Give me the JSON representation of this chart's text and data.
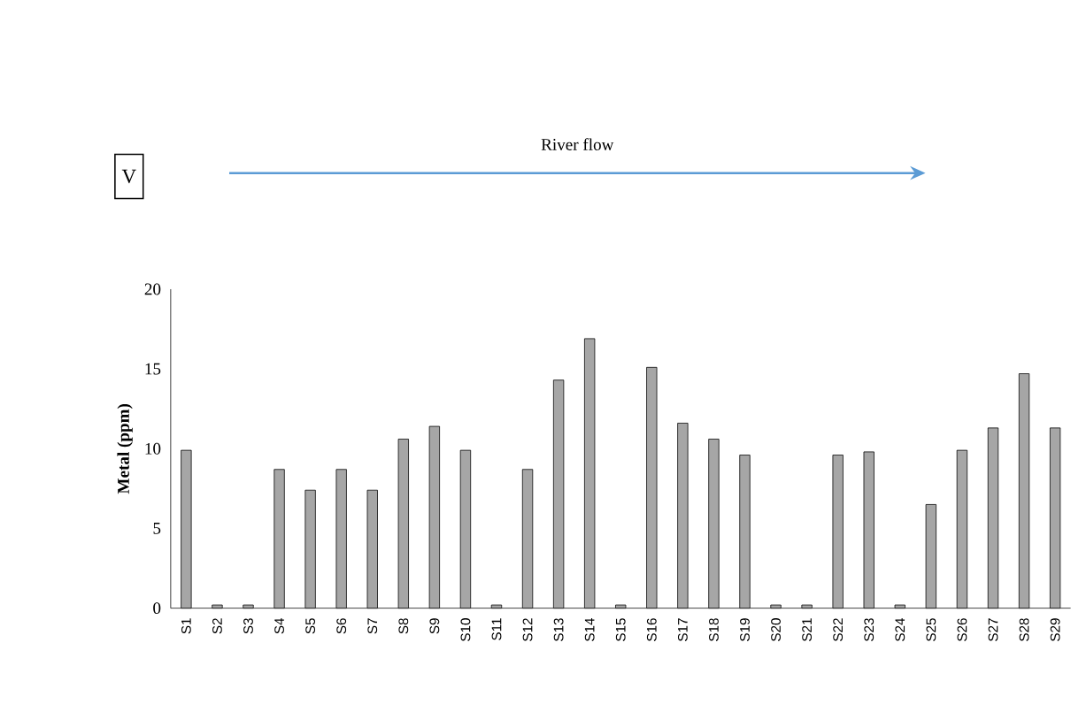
{
  "chart_data": {
    "type": "bar",
    "ylabel": "Metal (ppm)",
    "annotations": [
      "V",
      "River flow"
    ],
    "categories": [
      "S1",
      "S2",
      "S3",
      "S4",
      "S5",
      "S6",
      "S7",
      "S8",
      "S9",
      "S10",
      "S11",
      "S12",
      "S13",
      "S14",
      "S15",
      "S16",
      "S17",
      "S18",
      "S19",
      "S20",
      "S21",
      "S22",
      "S23",
      "S24",
      "S25",
      "S26",
      "S27",
      "S28",
      "S29"
    ],
    "values": [
      9.9,
      0.2,
      0.2,
      8.7,
      7.4,
      8.7,
      7.4,
      10.6,
      11.4,
      9.9,
      0.2,
      8.7,
      14.3,
      16.9,
      0.2,
      15.1,
      11.6,
      10.6,
      9.6,
      0.2,
      0.2,
      9.6,
      9.8,
      0.2,
      6.5,
      9.9,
      11.3,
      14.7,
      11.3
    ],
    "color": "#a6a6a6",
    "ylim": [
      0,
      20
    ],
    "yticks": [
      0,
      5,
      10,
      15,
      20
    ]
  }
}
